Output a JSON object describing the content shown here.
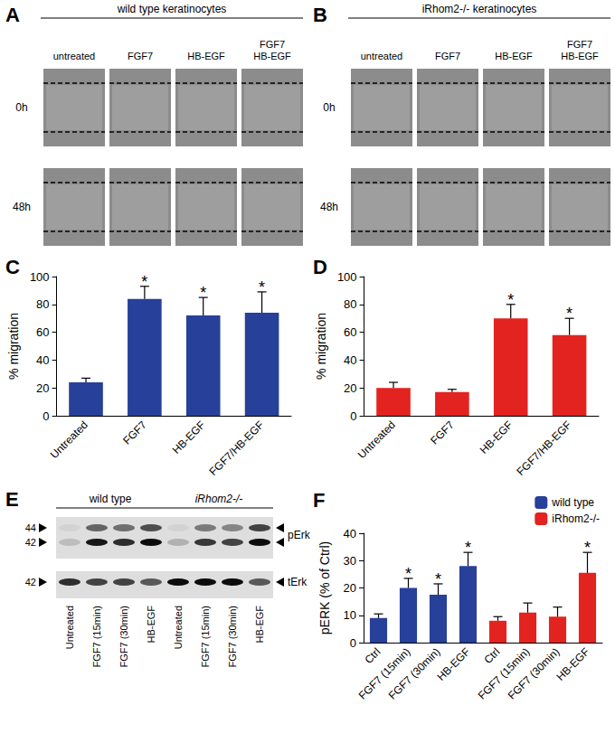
{
  "panels": {
    "A": {
      "letter": "A",
      "title": "wild type keratinocytes",
      "columns": [
        [
          "untreated"
        ],
        [
          "FGF7"
        ],
        [
          "HB-EGF"
        ],
        [
          "FGF7",
          "HB-EGF"
        ]
      ],
      "rows": [
        "0h",
        "48h"
      ]
    },
    "B": {
      "letter": "B",
      "title": "iRhom2-/- keratinocytes",
      "columns": [
        [
          "untreated"
        ],
        [
          "FGF7"
        ],
        [
          "HB-EGF"
        ],
        [
          "FGF7",
          "HB-EGF"
        ]
      ],
      "rows": [
        "0h",
        "48h"
      ]
    },
    "E": {
      "letter": "E",
      "groups": [
        "wild type",
        "iRhom2-/-"
      ],
      "lanes": [
        "Untreated",
        "FGF7 (15min)",
        "FGF7 (30min)",
        "HB-EGF",
        "Untreated",
        "FGF7 (15min)",
        "FGF7 (30min)",
        "HB-EGF"
      ],
      "blots": [
        {
          "name": "pErk",
          "markers": [
            44,
            42
          ],
          "bands": [
            [
              0.05,
              0.55,
              0.5,
              0.65,
              0.05,
              0.45,
              0.4,
              0.7
            ],
            [
              0.15,
              0.9,
              0.8,
              0.95,
              0.2,
              0.75,
              0.7,
              0.95
            ]
          ]
        },
        {
          "name": "tErk",
          "markers": [
            42
          ],
          "bands": [
            [
              0.8,
              0.7,
              0.7,
              0.6,
              0.95,
              0.95,
              0.95,
              0.6
            ]
          ]
        }
      ]
    }
  },
  "chart_data": [
    {
      "panel": "C",
      "type": "bar",
      "categories": [
        "Untreated",
        "FGF7",
        "HB-EGF",
        "FGF7/HB-EGF"
      ],
      "values": [
        24,
        84,
        72,
        74
      ],
      "errors": [
        3,
        9,
        13,
        15
      ],
      "annotations": [
        null,
        "*",
        "*",
        "*"
      ],
      "color": "#27409a",
      "ylabel": "% migration",
      "ylim": [
        0,
        100
      ],
      "yticks": [
        0,
        20,
        40,
        60,
        80,
        100
      ]
    },
    {
      "panel": "D",
      "type": "bar",
      "categories": [
        "Untreated",
        "FGF7",
        "HB-EGF",
        "FGF7/HB-EGF"
      ],
      "values": [
        20,
        17,
        70,
        58
      ],
      "errors": [
        4,
        2,
        10,
        12
      ],
      "annotations": [
        null,
        null,
        "*",
        "*"
      ],
      "color": "#e3231f",
      "ylabel": "% migration",
      "ylim": [
        0,
        100
      ],
      "yticks": [
        0,
        20,
        40,
        60,
        80,
        100
      ]
    },
    {
      "panel": "F",
      "type": "bar",
      "categories": [
        "Ctrl",
        "FGF7 (15min)",
        "FGF7 (30min)",
        "HB-EGF",
        "Ctrl",
        "FGF7 (15min)",
        "FGF7 (30min)",
        "HB-EGF"
      ],
      "series": [
        {
          "name": "wild type",
          "color": "#27409a",
          "values": [
            9,
            20,
            17.5,
            28,
            null,
            null,
            null,
            null
          ],
          "errors": [
            1.5,
            3.5,
            4,
            5,
            null,
            null,
            null,
            null
          ],
          "annotations": [
            null,
            "*",
            "*",
            "*",
            null,
            null,
            null,
            null
          ]
        },
        {
          "name": "iRhom2-/-",
          "color": "#e3231f",
          "values": [
            null,
            null,
            null,
            null,
            8,
            11,
            9.5,
            25.5
          ],
          "errors": [
            null,
            null,
            null,
            null,
            1.5,
            3.5,
            3.5,
            7.5
          ],
          "annotations": [
            null,
            null,
            null,
            null,
            null,
            null,
            null,
            "*"
          ]
        }
      ],
      "ylabel": "pERK (% of Ctrl)",
      "ylim": [
        0,
        40
      ],
      "yticks": [
        0,
        10,
        20,
        30,
        40
      ],
      "legend": "top-right"
    }
  ]
}
